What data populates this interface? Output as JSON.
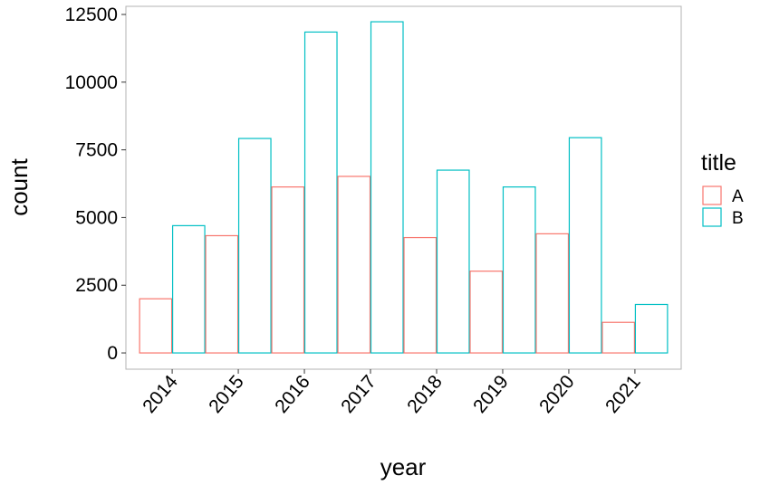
{
  "chart_data": {
    "type": "bar",
    "xlabel": "year",
    "ylabel": "count",
    "categories": [
      "2014",
      "2015",
      "2016",
      "2017",
      "2018",
      "2019",
      "2020",
      "2021"
    ],
    "series": [
      {
        "name": "A",
        "color": "#F8766D",
        "values": [
          2000,
          4330,
          6130,
          6520,
          4260,
          3020,
          4400,
          1130
        ]
      },
      {
        "name": "B",
        "color": "#00BFC4",
        "values": [
          4700,
          7920,
          11850,
          12230,
          6750,
          6130,
          7950,
          1790
        ]
      }
    ],
    "yticks": [
      "0",
      "2500",
      "5000",
      "7500",
      "10000",
      "12500"
    ],
    "ylim": [
      -600,
      12800
    ],
    "legend": {
      "title": "title",
      "position": "right"
    },
    "grid": false,
    "bar_style": "outline"
  }
}
